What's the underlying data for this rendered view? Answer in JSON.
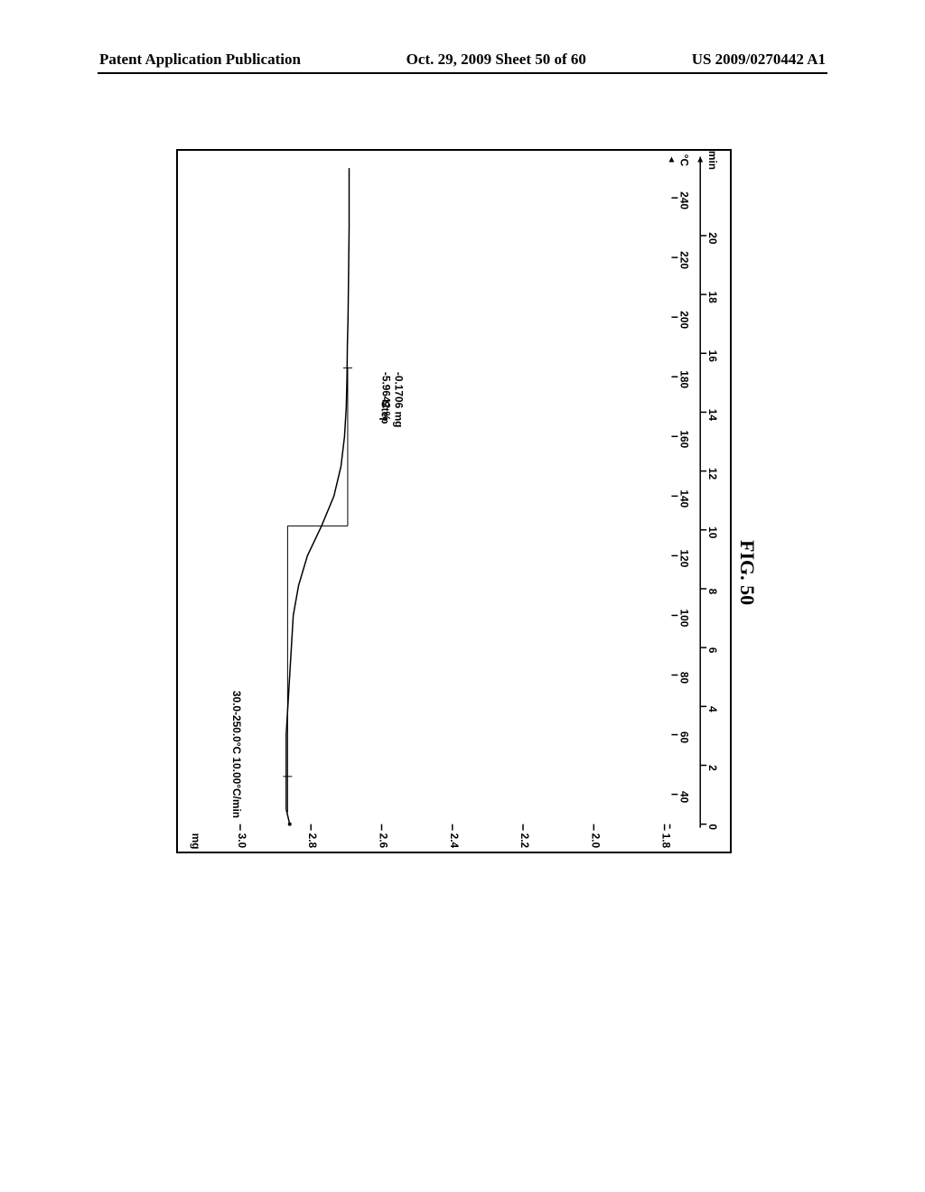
{
  "header": {
    "left": "Patent Application Publication",
    "center": "Oct. 29, 2009  Sheet 50 of 60",
    "right": "US 2009/0270442 A1"
  },
  "figure_label": "FIG. 50",
  "chart": {
    "type": "line",
    "orientation_note": "chart is rotated 90deg CCW in the page image",
    "y_axis": {
      "label": "mg",
      "ticks": [
        1.8,
        2.0,
        2.2,
        2.4,
        2.6,
        2.8,
        3.0
      ],
      "ylim": [
        1.78,
        3.1
      ],
      "label_fontsize": 12,
      "tick_fontsize": 12
    },
    "x_axis_top": {
      "label": "°C",
      "ticks": [
        40,
        60,
        80,
        100,
        120,
        140,
        160,
        180,
        200,
        220,
        240
      ],
      "xlim": [
        30,
        252
      ],
      "tick_fontsize": 12
    },
    "x_axis_bottom": {
      "label": "min",
      "ticks": [
        0,
        2,
        4,
        6,
        8,
        10,
        12,
        14,
        16,
        18,
        20
      ],
      "xlim": [
        0,
        22.5
      ],
      "tick_fontsize": 12
    },
    "method_label": "30.0-250.0°C 10.00°C/min",
    "step_annotation": {
      "line1": "Step",
      "line2": "-5.9642 %",
      "line3": "-0.1706 mg"
    },
    "curve": {
      "color": "#000000",
      "line_width": 1.5,
      "points_degC_mg": [
        [
          30,
          2.86
        ],
        [
          35,
          2.87
        ],
        [
          40,
          2.87
        ],
        [
          45,
          2.87
        ],
        [
          50,
          2.87
        ],
        [
          55,
          2.87
        ],
        [
          60,
          2.87
        ],
        [
          70,
          2.865
        ],
        [
          80,
          2.86
        ],
        [
          90,
          2.855
        ],
        [
          100,
          2.85
        ],
        [
          110,
          2.835
        ],
        [
          120,
          2.81
        ],
        [
          130,
          2.77
        ],
        [
          140,
          2.735
        ],
        [
          150,
          2.715
        ],
        [
          160,
          2.705
        ],
        [
          170,
          2.7
        ],
        [
          180,
          2.698
        ],
        [
          190,
          2.697
        ],
        [
          200,
          2.695
        ],
        [
          210,
          2.694
        ],
        [
          220,
          2.693
        ],
        [
          230,
          2.692
        ],
        [
          240,
          2.692
        ],
        [
          250,
          2.692
        ]
      ]
    },
    "step_markers": {
      "vertical_at_degC": 130,
      "upper_plateau_mg": 2.866,
      "upper_plateau_x_range_degC": [
        34,
        130
      ],
      "lower_plateau_mg": 2.696,
      "lower_plateau_x_range_degC": [
        130,
        183
      ],
      "tick_marks_degC": [
        46,
        183
      ]
    },
    "background_color": "#ffffff",
    "border_color": "#000000"
  }
}
